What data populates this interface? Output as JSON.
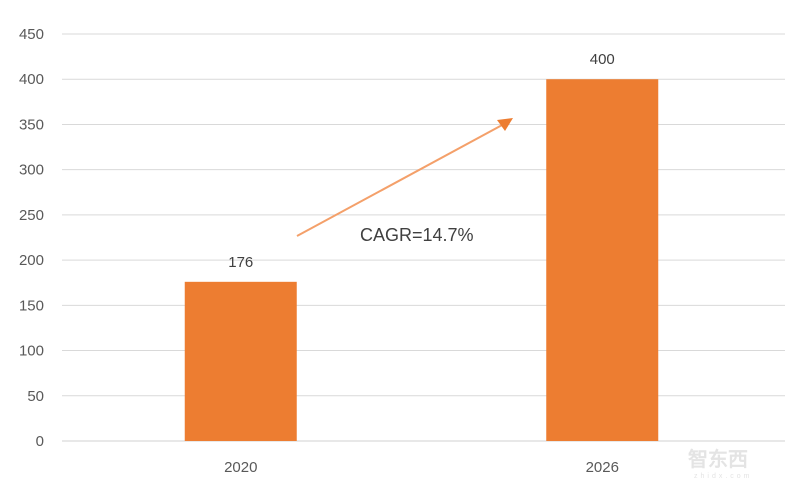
{
  "chart_data": {
    "type": "bar",
    "title": "",
    "xlabel": "",
    "ylabel": "",
    "categories": [
      "2020",
      "2026"
    ],
    "values": [
      176,
      400
    ],
    "data_labels": [
      "176",
      "400"
    ],
    "ylim": [
      0,
      450
    ],
    "yticks": [
      0,
      50,
      100,
      150,
      200,
      250,
      300,
      350,
      400,
      450
    ],
    "grid": true,
    "legend": "none",
    "bar_color": "#ED7D31",
    "annotation": {
      "text": "CAGR=14.7%",
      "arrow_color": "#F4A06A"
    }
  },
  "watermark": {
    "text": "智东西",
    "subtext": "zhidx.com"
  }
}
